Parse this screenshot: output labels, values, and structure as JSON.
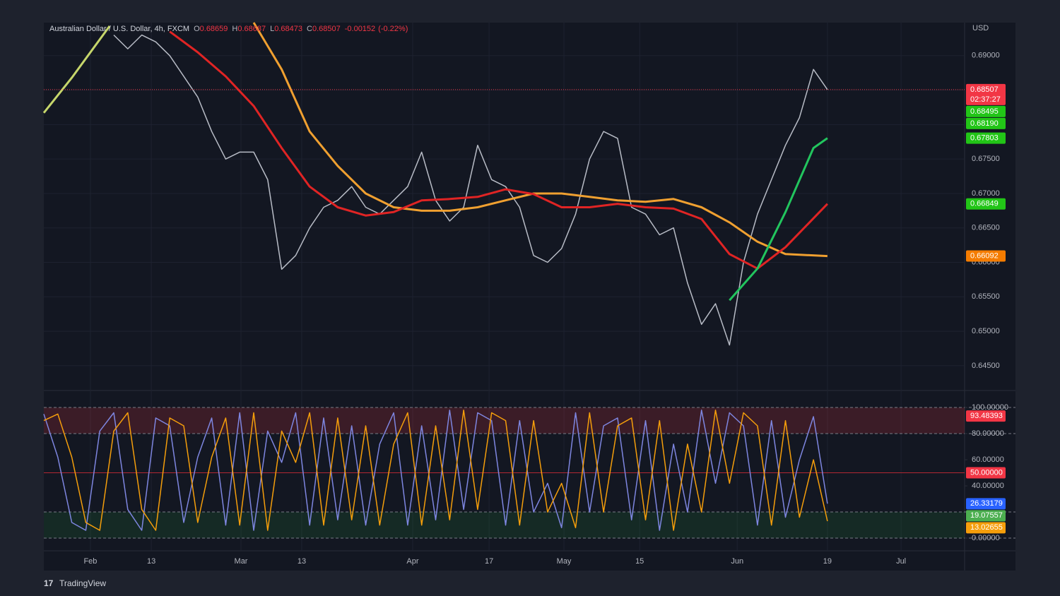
{
  "header": {
    "symbol": "Australian Dollar / U.S. Dollar, 4h, FXCM",
    "ohlc": [
      {
        "label": "O",
        "value": 0.68659
      },
      {
        "label": "H",
        "value": 0.68687
      },
      {
        "label": "L",
        "value": 0.68473
      },
      {
        "label": "C",
        "value": 0.68507
      }
    ],
    "change": -0.00152,
    "change_pct": "(-0.22%)",
    "currency": "USD"
  },
  "brand": "TradingView",
  "chart_data": [
    {
      "type": "line",
      "x": [
        0,
        1,
        2,
        3,
        4,
        5,
        6,
        7,
        8,
        9,
        10,
        11,
        12,
        13,
        14,
        15,
        16,
        17,
        18,
        19,
        20,
        21,
        22,
        23,
        24,
        25,
        26,
        27,
        28,
        29,
        30,
        31,
        32,
        33,
        34,
        35,
        36,
        37,
        38,
        39,
        40,
        41,
        42,
        43,
        44,
        45,
        46,
        47,
        48,
        49,
        50,
        51,
        52,
        53,
        54,
        55,
        56
      ],
      "xlim": [
        0,
        65.8
      ],
      "xticks": [
        {
          "value": 3.33,
          "label": "Feb"
        },
        {
          "value": 7.68,
          "label": "13"
        },
        {
          "value": 14.09,
          "label": "Mar"
        },
        {
          "value": 18.43,
          "label": "13"
        },
        {
          "value": 26.36,
          "label": "Apr"
        },
        {
          "value": 31.82,
          "label": "17"
        },
        {
          "value": 37.17,
          "label": "May"
        },
        {
          "value": 42.58,
          "label": "15"
        },
        {
          "value": 49.55,
          "label": "Jun"
        },
        {
          "value": 56.0,
          "label": "19"
        },
        {
          "value": 61.26,
          "label": "Jul"
        }
      ],
      "ylim": [
        0.6414,
        0.6948
      ],
      "yticks": [
        {
          "value": 0.645,
          "label": "0.64500"
        },
        {
          "value": 0.65,
          "label": "0.65000"
        },
        {
          "value": 0.655,
          "label": "0.65500"
        },
        {
          "value": 0.66,
          "label": "0.66000"
        },
        {
          "value": 0.665,
          "label": "0.66500"
        },
        {
          "value": 0.67,
          "label": "0.67000"
        },
        {
          "value": 0.675,
          "label": "0.67500"
        },
        {
          "value": 0.68,
          "label": "0.68000"
        },
        {
          "value": 0.685,
          "label": "0.68500"
        },
        {
          "value": 0.69,
          "label": "0.69000"
        }
      ],
      "grid": true,
      "series": [
        {
          "color": "#b8bcc6",
          "values": [
            null,
            null,
            null,
            null,
            null,
            0.693,
            0.691,
            0.693,
            0.692,
            0.69,
            0.687,
            0.684,
            0.679,
            0.675,
            0.676,
            0.676,
            0.672,
            0.659,
            0.661,
            0.665,
            0.668,
            0.669,
            0.671,
            0.668,
            0.667,
            0.669,
            0.671,
            0.676,
            0.669,
            0.666,
            0.668,
            0.677,
            0.672,
            0.671,
            0.668,
            0.661,
            0.66,
            0.662,
            0.667,
            0.675,
            0.679,
            0.678,
            0.668,
            0.667,
            0.664,
            0.665,
            0.657,
            0.651,
            0.654,
            0.648,
            0.66,
            0.667,
            0.672,
            0.677,
            0.681,
            0.688,
            0.68507
          ]
        },
        {
          "color": "#c6d66b",
          "x": [
            0,
            2,
            4.7
          ],
          "values": [
            0.6817,
            0.6868,
            0.6943
          ]
        },
        {
          "color": "#f0a030",
          "x": [
            15,
            17,
            19,
            21,
            23,
            25,
            27,
            29,
            31,
            33,
            35,
            37,
            39,
            41,
            43,
            45,
            47,
            49,
            51,
            53,
            56
          ],
          "values": [
            0.6948,
            0.688,
            0.679,
            0.674,
            0.67,
            0.668,
            0.6675,
            0.6675,
            0.668,
            0.669,
            0.67,
            0.67,
            0.6695,
            0.669,
            0.6688,
            0.6692,
            0.668,
            0.6658,
            0.663,
            0.6612,
            0.66092
          ]
        },
        {
          "color": "#e02424",
          "x": [
            9,
            11,
            13,
            15,
            17,
            19,
            21,
            23,
            25,
            27,
            29,
            31,
            33,
            35,
            37,
            39,
            41,
            43,
            45,
            47,
            49,
            51,
            53,
            56
          ],
          "values": [
            0.6935,
            0.6905,
            0.687,
            0.6827,
            0.6766,
            0.671,
            0.668,
            0.6668,
            0.6673,
            0.669,
            0.6692,
            0.6695,
            0.6706,
            0.6699,
            0.668,
            0.668,
            0.6685,
            0.668,
            0.6678,
            0.6663,
            0.6612,
            0.6591,
            0.6622,
            0.66849
          ]
        },
        {
          "color": "#22c55e",
          "x": [
            49,
            51,
            53,
            55,
            56
          ],
          "values": [
            0.6545,
            0.6591,
            0.6673,
            0.6766,
            0.67803
          ]
        }
      ],
      "value_labels": [
        {
          "value": 0.68507,
          "label": "0.68507",
          "color": "#f23645"
        },
        {
          "value": 0.68495,
          "label": "0.68495",
          "color": "#22c517"
        },
        {
          "value": 0.6819,
          "label": "0.68190",
          "color": "#22c517"
        },
        {
          "value": 0.67803,
          "label": "0.67803",
          "color": "#22c517"
        },
        {
          "value": 0.66849,
          "label": "0.66849",
          "color": "#22c517"
        },
        {
          "value": 0.66092,
          "label": "0.66092",
          "color": "#f57c00"
        }
      ],
      "countdown": "02:37:27"
    },
    {
      "type": "line",
      "x": [
        0,
        1,
        2,
        3,
        4,
        5,
        6,
        7,
        8,
        9,
        10,
        11,
        12,
        13,
        14,
        15,
        16,
        17,
        18,
        19,
        20,
        21,
        22,
        23,
        24,
        25,
        26,
        27,
        28,
        29,
        30,
        31,
        32,
        33,
        34,
        35,
        36,
        37,
        38,
        39,
        40,
        41,
        42,
        43,
        44,
        45,
        46,
        47,
        48,
        49,
        50,
        51,
        52,
        53,
        54,
        55,
        56
      ],
      "xlim": [
        0,
        65.8
      ],
      "ylim": [
        -9.7,
        113
      ],
      "yticks": [
        {
          "value": 0,
          "label": "0.00000"
        },
        {
          "value": 40,
          "label": "40.00000"
        },
        {
          "value": 60,
          "label": "60.00000"
        },
        {
          "value": 80,
          "label": "80.00000"
        },
        {
          "value": 100,
          "label": "100.00000"
        }
      ],
      "overbought": [
        80,
        100
      ],
      "oversold": [
        0,
        20
      ],
      "midline": 50,
      "series": [
        {
          "color": "#7e86e0",
          "values": [
            95,
            62,
            12,
            6,
            82,
            96,
            22,
            6,
            92,
            86,
            12,
            62,
            92,
            10,
            96,
            6,
            82,
            58,
            96,
            10,
            92,
            14,
            86,
            10,
            72,
            96,
            10,
            86,
            14,
            98,
            22,
            96,
            90,
            10,
            90,
            20,
            42,
            8,
            96,
            20,
            86,
            92,
            14,
            90,
            6,
            72,
            20,
            98,
            42,
            96,
            86,
            10,
            90,
            16,
            60,
            93,
            26.33179
          ]
        },
        {
          "color": "#f59e0b",
          "values": [
            90,
            95,
            62,
            12,
            6,
            82,
            96,
            22,
            6,
            92,
            86,
            12,
            62,
            92,
            10,
            96,
            6,
            82,
            58,
            96,
            10,
            92,
            14,
            86,
            10,
            72,
            96,
            10,
            86,
            14,
            98,
            22,
            96,
            90,
            10,
            90,
            20,
            42,
            8,
            96,
            20,
            86,
            92,
            14,
            90,
            6,
            72,
            20,
            98,
            42,
            96,
            86,
            10,
            90,
            16,
            60,
            13.02655
          ]
        }
      ],
      "value_labels": [
        {
          "value": 93.48393,
          "label": "93.48393",
          "color": "#f23645"
        },
        {
          "value": 50,
          "label": "50.00000",
          "color": "#f23645"
        },
        {
          "value": 26.33179,
          "label": "26.33179",
          "color": "#2962ff"
        },
        {
          "value": 19.07557,
          "label": "19.07557",
          "color": "#4caf50"
        },
        {
          "value": 13.02655,
          "label": "13.02655",
          "color": "#f59e0b"
        }
      ]
    }
  ]
}
